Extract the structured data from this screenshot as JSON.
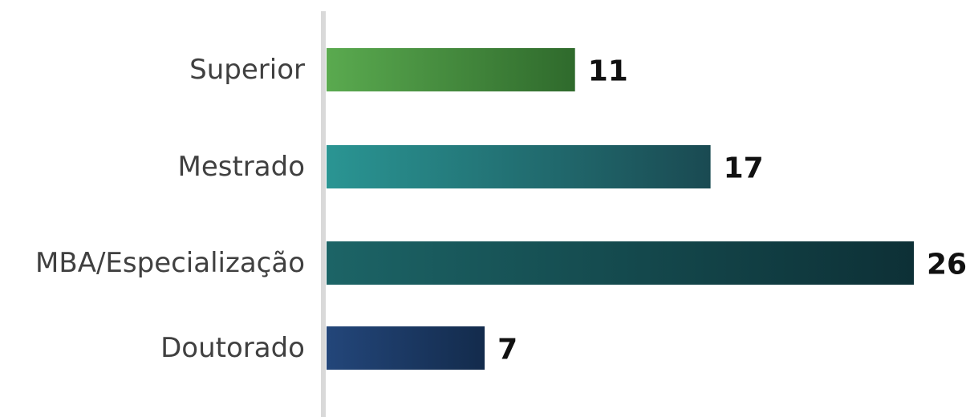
{
  "chart_data": {
    "type": "bar",
    "orientation": "horizontal",
    "categories": [
      "Superior",
      "Mestrado",
      "MBA/Especialização",
      "Doutorado"
    ],
    "values": [
      11,
      17,
      26,
      7
    ],
    "data_labels": [
      "11",
      "17",
      "26",
      "7"
    ],
    "title": "",
    "xlabel": "",
    "ylabel": "",
    "xlim": [
      0,
      26
    ],
    "grid": false,
    "legend": "none",
    "colors": [
      [
        "#5aaa4f",
        "#2f6a2c"
      ],
      [
        "#2a9593",
        "#1a4a52"
      ],
      [
        "#1c6466",
        "#0d3036"
      ],
      [
        "#23467a",
        "#132b4c"
      ]
    ],
    "axis_color": "#d9d9d9"
  }
}
